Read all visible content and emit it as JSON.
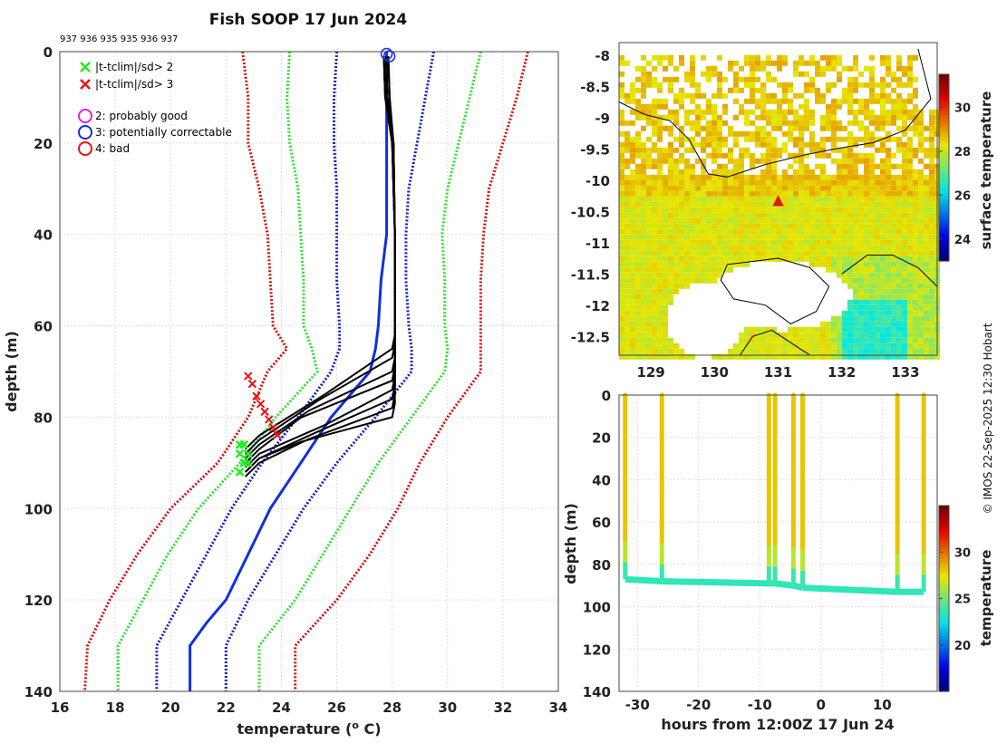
{
  "title": "Fish SOOP 17 Jun 2024",
  "profile_ids": "937 936 935 935 936 937",
  "credit": "© IMOS 22-Sep-2025 12:30 Hobart",
  "colors": {
    "clim_red": "#d01010",
    "clim_green": "#33dd33",
    "clim_blue": "#1020c0",
    "mean_blue": "#1030e0",
    "profile": "#000000",
    "flag_green": "#22ee22",
    "flag_red": "#ee1010",
    "grid": "#dddddd"
  },
  "chart_data": [
    {
      "id": "profiles",
      "type": "line",
      "title": "Fish SOOP 17 Jun 2024",
      "xlabel": "temperature (° C)",
      "ylabel": "depth (m)",
      "xlim": [
        16,
        34
      ],
      "ylim": [
        140,
        0
      ],
      "xticks": [
        16,
        18,
        20,
        22,
        24,
        26,
        28,
        30,
        32,
        34
      ],
      "yticks": [
        0,
        20,
        40,
        60,
        80,
        100,
        120,
        140
      ],
      "legend": [
        {
          "marker": "x",
          "color": "#22ee22",
          "label": "|t-tclim|/sd> 2"
        },
        {
          "marker": "x",
          "color": "#ee1010",
          "label": "|t-tclim|/sd> 3"
        },
        {
          "marker": "o",
          "color": "#dd22dd",
          "label": "2: probably good"
        },
        {
          "marker": "o",
          "color": "#1030e0",
          "label": "3: potentially correctable"
        },
        {
          "marker": "o",
          "color": "#ee1010",
          "label": "4: bad"
        }
      ],
      "climatology": [
        {
          "name": "+3sd",
          "color": "#d01010",
          "style": "dotted",
          "depth": [
            0,
            10,
            20,
            30,
            40,
            50,
            60,
            65,
            70,
            80,
            90,
            100,
            110,
            120,
            130,
            140
          ],
          "temp": [
            32.9,
            32.5,
            32.0,
            31.5,
            31.3,
            31.2,
            31.2,
            31.2,
            31.2,
            30.0,
            29.0,
            28.2,
            27.2,
            26.0,
            24.5,
            24.5
          ]
        },
        {
          "name": "+2sd",
          "color": "#33dd33",
          "style": "dotted",
          "depth": [
            0,
            10,
            20,
            30,
            40,
            50,
            60,
            65,
            70,
            80,
            90,
            100,
            110,
            120,
            130,
            140
          ],
          "temp": [
            31.2,
            30.8,
            30.4,
            30.0,
            29.8,
            29.9,
            29.9,
            30.0,
            29.9,
            28.7,
            27.5,
            26.5,
            25.5,
            24.5,
            23.2,
            23.2
          ]
        },
        {
          "name": "+1sd",
          "color": "#1020c0",
          "style": "dotted",
          "depth": [
            0,
            10,
            20,
            30,
            40,
            50,
            60,
            65,
            70,
            80,
            90,
            100,
            110,
            120,
            130,
            140
          ],
          "temp": [
            29.5,
            29.2,
            28.9,
            28.6,
            28.5,
            28.5,
            28.6,
            28.7,
            28.7,
            27.4,
            26.0,
            24.8,
            23.8,
            22.8,
            22.0,
            22.0
          ]
        },
        {
          "name": "mean",
          "color": "#1030e0",
          "style": "solid",
          "depth": [
            0,
            10,
            20,
            30,
            40,
            50,
            60,
            65,
            70,
            80,
            90,
            100,
            110,
            120,
            125,
            130,
            140
          ],
          "temp": [
            27.8,
            27.8,
            27.8,
            27.8,
            27.8,
            27.6,
            27.5,
            27.4,
            27.2,
            25.8,
            24.7,
            23.6,
            22.8,
            22.0,
            21.3,
            20.7,
            20.7
          ]
        },
        {
          "name": "-1sd",
          "color": "#1020c0",
          "style": "dotted",
          "depth": [
            0,
            10,
            20,
            30,
            40,
            50,
            60,
            65,
            70,
            80,
            90,
            100,
            110,
            120,
            130,
            140
          ],
          "temp": [
            26.0,
            25.9,
            25.9,
            26.0,
            26.0,
            26.0,
            26.1,
            26.1,
            25.8,
            24.6,
            23.3,
            22.2,
            21.3,
            20.4,
            19.5,
            19.5
          ]
        },
        {
          "name": "-2sd",
          "color": "#33dd33",
          "style": "dotted",
          "depth": [
            0,
            10,
            20,
            30,
            40,
            50,
            60,
            65,
            70,
            80,
            90,
            100,
            110,
            120,
            130,
            140
          ],
          "temp": [
            24.3,
            24.2,
            24.3,
            24.6,
            24.7,
            24.8,
            24.8,
            25.1,
            25.3,
            23.8,
            22.5,
            21.0,
            19.9,
            19.0,
            18.1,
            18.1
          ]
        },
        {
          "name": "-3sd",
          "color": "#d01010",
          "style": "dotted",
          "depth": [
            0,
            10,
            20,
            30,
            40,
            50,
            60,
            65,
            70,
            80,
            90,
            100,
            110,
            120,
            130,
            140
          ],
          "temp": [
            22.6,
            22.8,
            22.8,
            23.2,
            23.5,
            23.6,
            23.7,
            24.2,
            23.5,
            22.8,
            21.7,
            20.0,
            18.8,
            17.8,
            17.0,
            16.9
          ]
        }
      ],
      "profiles": [
        {
          "break_depth": 65,
          "end_depth": 87
        },
        {
          "break_depth": 67,
          "end_depth": 88
        },
        {
          "break_depth": 70,
          "end_depth": 89
        },
        {
          "break_depth": 72,
          "end_depth": 90
        },
        {
          "break_depth": 74,
          "end_depth": 91
        },
        {
          "break_depth": 76,
          "end_depth": 92
        },
        {
          "break_depth": 78,
          "end_depth": 93
        },
        {
          "break_depth": 80,
          "end_depth": 92
        }
      ],
      "start_markers": [
        {
          "temp": 27.8,
          "depth": 0.5,
          "flag": "3: potentially correctable"
        },
        {
          "temp": 27.9,
          "depth": 1.0,
          "flag": "3: potentially correctable"
        }
      ]
    },
    {
      "id": "sst_map",
      "type": "heatmap",
      "xlim": [
        128.5,
        133.5
      ],
      "ylim": [
        -12.8,
        -7.8
      ],
      "xticks": [
        129,
        130,
        131,
        132,
        133
      ],
      "yticks": [
        -8,
        -8.5,
        -9,
        -9.5,
        -10,
        -10.5,
        -11,
        -11.5,
        -12,
        -12.5
      ],
      "colorbar_label": "surface temperature",
      "colorbar_range": [
        23,
        31.5
      ],
      "colorbar_ticks": [
        24,
        26,
        28,
        30
      ],
      "marker": {
        "lon": 131.0,
        "lat": -10.3,
        "symbol": "▲",
        "color": "#ee1010"
      }
    },
    {
      "id": "section",
      "type": "scatter",
      "xlabel": "hours from 12:00Z 17 Jun 24",
      "ylabel": "depth (m)",
      "xlim": [
        -33,
        19
      ],
      "ylim": [
        140,
        0
      ],
      "xticks": [
        -30,
        -20,
        -10,
        0,
        10
      ],
      "yticks": [
        0,
        20,
        40,
        60,
        80,
        100,
        120,
        140
      ],
      "colorbar_label": "temperature",
      "colorbar_range": [
        15,
        35
      ],
      "colorbar_ticks": [
        20,
        25,
        30
      ],
      "casts": [
        {
          "hour": -32.0,
          "bottom": 87
        },
        {
          "hour": -26.0,
          "bottom": 88
        },
        {
          "hour": -8.5,
          "bottom": 89
        },
        {
          "hour": -7.5,
          "bottom": 89
        },
        {
          "hour": -4.5,
          "bottom": 90
        },
        {
          "hour": -3.0,
          "bottom": 91
        },
        {
          "hour": 12.5,
          "bottom": 93
        },
        {
          "hour": 16.8,
          "bottom": 93
        }
      ]
    }
  ]
}
